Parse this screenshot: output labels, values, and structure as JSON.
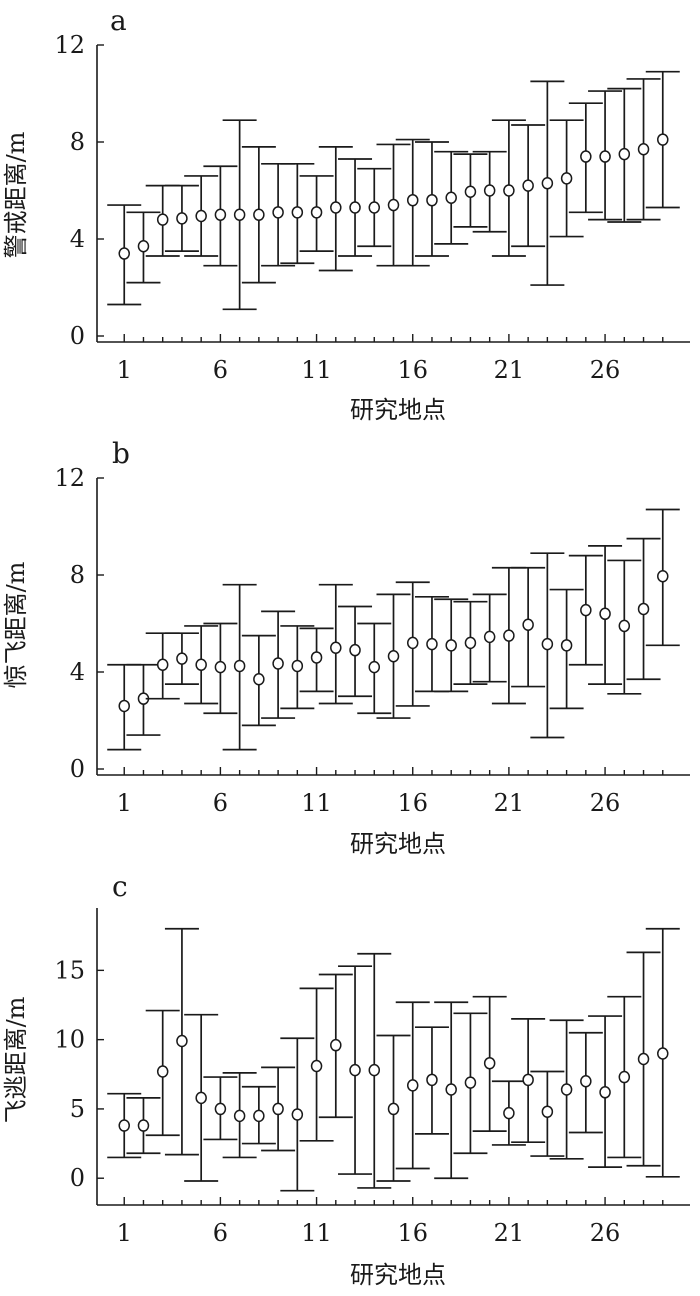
{
  "chart_data": [
    {
      "type": "scatter",
      "panel_label": "a",
      "xlabel": "研究地点",
      "ylabel": "警戒距离/m",
      "xticks": [
        1,
        6,
        11,
        16,
        21,
        26
      ],
      "yticks": [
        0,
        4,
        8,
        12
      ],
      "ylim": [
        0,
        12
      ],
      "xlim": [
        0,
        30
      ],
      "grid": false,
      "x": [
        1,
        2,
        3,
        4,
        5,
        6,
        7,
        8,
        9,
        10,
        11,
        12,
        13,
        14,
        15,
        16,
        17,
        18,
        19,
        20,
        21,
        22,
        23,
        24,
        25,
        26,
        27,
        28,
        29
      ],
      "series": [
        {
          "mean": [
            3.4,
            3.7,
            4.8,
            4.85,
            4.95,
            5.0,
            5.0,
            5.0,
            5.1,
            5.1,
            5.1,
            5.3,
            5.3,
            5.3,
            5.4,
            5.6,
            5.6,
            5.7,
            5.95,
            6.0,
            6.0,
            6.2,
            6.3,
            6.5,
            7.4,
            7.4,
            7.5,
            7.7,
            8.1
          ],
          "upper": [
            5.4,
            5.1,
            6.2,
            6.2,
            6.6,
            7.0,
            8.9,
            7.8,
            7.1,
            7.1,
            6.6,
            7.8,
            7.3,
            6.9,
            7.9,
            8.1,
            8.0,
            7.6,
            7.5,
            7.6,
            8.9,
            8.7,
            10.5,
            8.9,
            9.6,
            10.1,
            10.2,
            10.6,
            10.9
          ],
          "lower": [
            1.3,
            2.2,
            3.3,
            3.5,
            3.3,
            2.9,
            1.1,
            2.2,
            2.9,
            3.0,
            3.5,
            2.7,
            3.3,
            3.7,
            2.9,
            2.9,
            3.3,
            3.8,
            4.5,
            4.3,
            3.3,
            3.7,
            2.1,
            4.1,
            5.1,
            4.8,
            4.7,
            4.8,
            5.3
          ]
        }
      ]
    },
    {
      "type": "scatter",
      "panel_label": "b",
      "xlabel": "研究地点",
      "ylabel": "惊飞距离/m",
      "xticks": [
        1,
        6,
        11,
        16,
        21,
        26
      ],
      "yticks": [
        0,
        4,
        8,
        12
      ],
      "ylim": [
        0,
        12
      ],
      "xlim": [
        0,
        30
      ],
      "grid": false,
      "x": [
        1,
        2,
        3,
        4,
        5,
        6,
        7,
        8,
        9,
        10,
        11,
        12,
        13,
        14,
        15,
        16,
        17,
        18,
        19,
        20,
        21,
        22,
        23,
        24,
        25,
        26,
        27,
        28,
        29
      ],
      "series": [
        {
          "mean": [
            2.6,
            2.9,
            4.3,
            4.55,
            4.3,
            4.2,
            4.25,
            3.7,
            4.35,
            4.25,
            4.6,
            5.0,
            4.9,
            4.2,
            4.65,
            5.2,
            5.15,
            5.1,
            5.2,
            5.45,
            5.5,
            5.95,
            5.15,
            5.1,
            6.55,
            6.4,
            5.9,
            6.6,
            7.95
          ],
          "upper": [
            4.3,
            4.3,
            5.6,
            5.6,
            5.9,
            6.0,
            7.6,
            5.5,
            6.5,
            5.9,
            5.8,
            7.6,
            6.7,
            6.0,
            7.2,
            7.7,
            7.1,
            7.0,
            6.9,
            7.2,
            8.3,
            8.3,
            8.9,
            7.4,
            8.8,
            9.2,
            8.6,
            9.5,
            10.7
          ],
          "lower": [
            0.8,
            1.4,
            2.9,
            3.5,
            2.7,
            2.3,
            0.8,
            1.8,
            2.1,
            2.5,
            3.2,
            2.7,
            3.0,
            2.3,
            2.1,
            2.6,
            3.2,
            3.2,
            3.5,
            3.6,
            2.7,
            3.4,
            1.3,
            2.5,
            4.3,
            3.5,
            3.1,
            3.7,
            5.1
          ]
        }
      ]
    },
    {
      "type": "scatter",
      "panel_label": "c",
      "xlabel": "研究地点",
      "ylabel": "飞逃距离/m",
      "xticks": [
        1,
        6,
        11,
        16,
        21,
        26
      ],
      "yticks": [
        0,
        5,
        10,
        15
      ],
      "ylim": [
        -1.5,
        19.5
      ],
      "xlim": [
        0,
        30
      ],
      "grid": false,
      "x": [
        1,
        2,
        3,
        4,
        5,
        6,
        7,
        8,
        9,
        10,
        11,
        12,
        13,
        14,
        15,
        16,
        17,
        18,
        19,
        20,
        21,
        22,
        23,
        24,
        25,
        26,
        27,
        28,
        29
      ],
      "series": [
        {
          "mean": [
            3.8,
            3.8,
            7.7,
            9.9,
            5.8,
            5.0,
            4.5,
            4.5,
            5.0,
            4.6,
            8.1,
            9.6,
            7.8,
            7.8,
            5.0,
            6.7,
            7.1,
            6.4,
            6.9,
            8.3,
            4.7,
            7.1,
            4.8,
            6.4,
            7.0,
            6.2,
            7.3,
            8.6,
            9.0
          ],
          "upper": [
            6.1,
            5.8,
            12.1,
            18.0,
            11.8,
            7.3,
            7.6,
            6.6,
            8.0,
            10.1,
            13.7,
            14.7,
            15.3,
            16.2,
            10.3,
            12.7,
            10.9,
            12.7,
            11.9,
            13.1,
            7.0,
            11.5,
            7.7,
            11.4,
            10.5,
            11.7,
            13.1,
            16.3,
            18.0
          ],
          "lower": [
            1.5,
            1.8,
            3.1,
            1.7,
            -0.2,
            2.8,
            1.5,
            2.5,
            2.0,
            -0.9,
            2.7,
            4.4,
            0.3,
            -0.7,
            -0.2,
            0.7,
            3.2,
            0.0,
            1.8,
            3.4,
            2.4,
            2.6,
            1.6,
            1.4,
            3.3,
            0.8,
            1.5,
            0.9,
            0.1
          ]
        }
      ]
    }
  ]
}
